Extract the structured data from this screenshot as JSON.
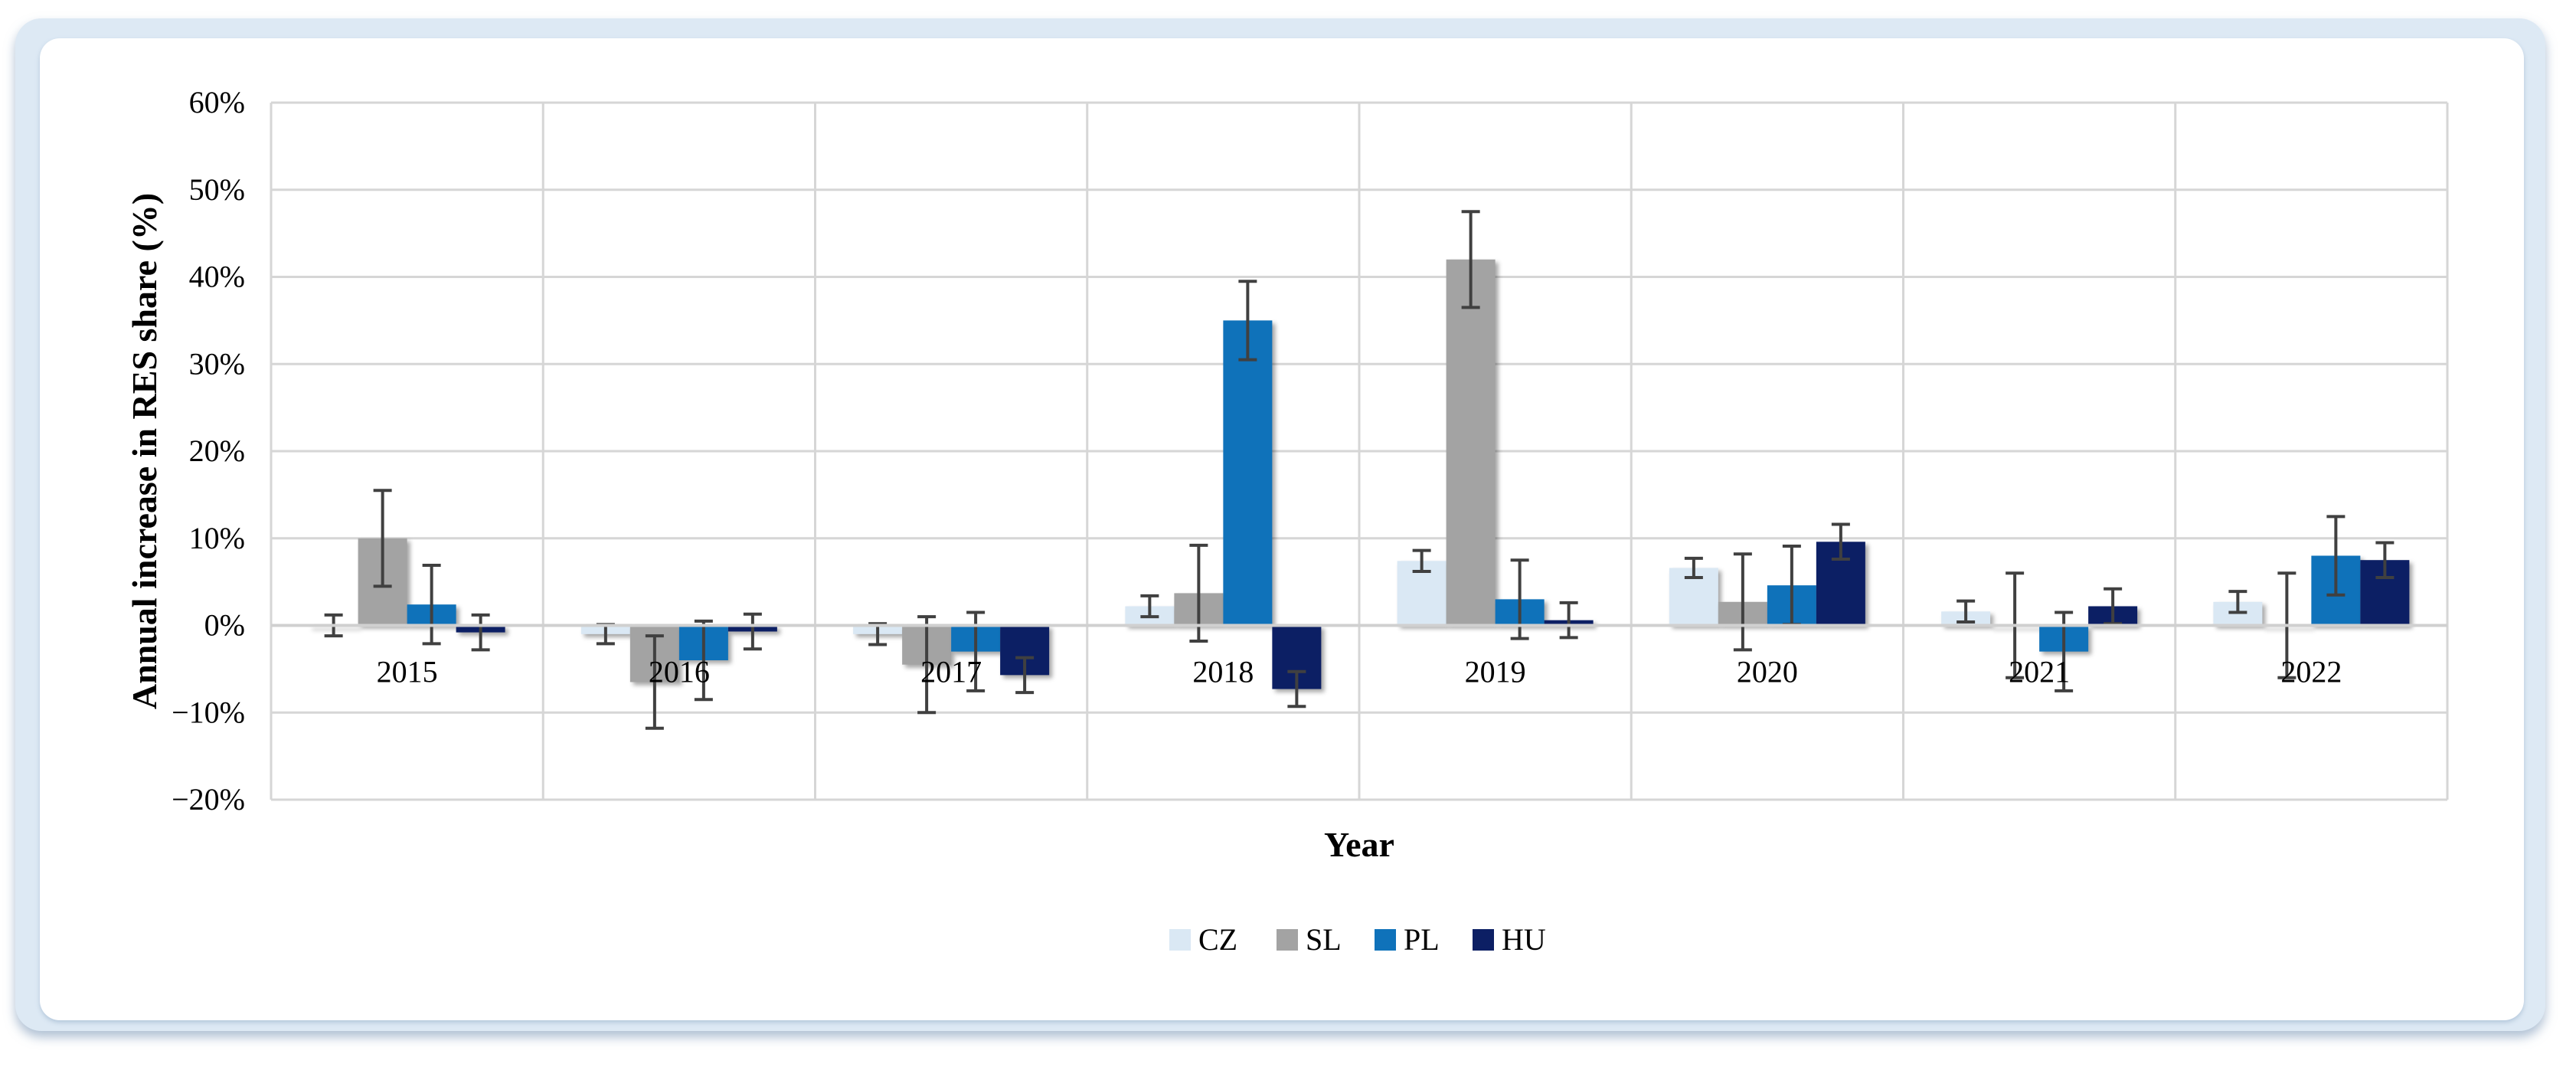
{
  "chart_data": {
    "type": "bar",
    "title": "",
    "xlabel": "Year",
    "ylabel": "Annual increase in RES share (%)",
    "categories": [
      "2015",
      "2016",
      "2017",
      "2018",
      "2019",
      "2020",
      "2021",
      "2022"
    ],
    "y_ticks": [
      "60%",
      "50%",
      "40%",
      "30%",
      "20%",
      "10%",
      "0%",
      "−10%",
      "−20%"
    ],
    "ylim": [
      -0.2,
      0.6
    ],
    "grid": true,
    "legend_position": "bottom",
    "error_bars": true,
    "series": [
      {
        "name": "CZ",
        "color": "#dae8f4",
        "values": [
          0.0,
          -0.01,
          -0.01,
          0.022,
          0.074,
          0.066,
          0.016,
          0.027
        ],
        "errors": [
          0.012,
          0.011,
          0.012,
          0.012,
          0.012,
          0.011,
          0.012,
          0.012
        ]
      },
      {
        "name": "SL",
        "color": "#a3a3a3",
        "values": [
          0.1,
          -0.065,
          -0.045,
          0.037,
          0.42,
          0.027,
          0.0,
          0.0
        ],
        "errors": [
          0.055,
          0.053,
          0.055,
          0.055,
          0.055,
          0.055,
          0.06,
          0.06
        ]
      },
      {
        "name": "PL",
        "color": "#0f72ba",
        "values": [
          0.024,
          -0.04,
          -0.03,
          0.35,
          0.03,
          0.046,
          -0.03,
          0.08
        ],
        "errors": [
          0.045,
          0.045,
          0.045,
          0.045,
          0.045,
          0.045,
          0.045,
          0.045
        ]
      },
      {
        "name": "HU",
        "color": "#0c1f64",
        "values": [
          -0.008,
          -0.007,
          -0.057,
          -0.073,
          0.006,
          0.096,
          0.022,
          0.075
        ],
        "errors": [
          0.02,
          0.02,
          0.02,
          0.02,
          0.02,
          0.02,
          0.02,
          0.02
        ]
      }
    ]
  }
}
